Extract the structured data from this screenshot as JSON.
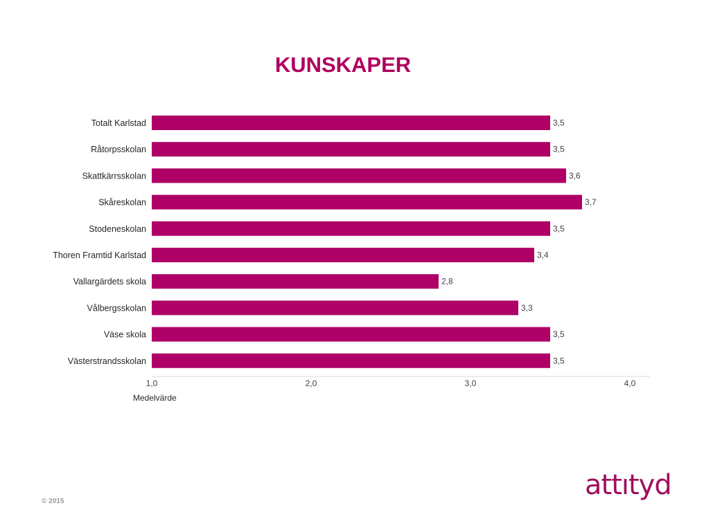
{
  "slide": {
    "title": "KUNSKAPER",
    "footer": "© 2015",
    "brand": "attıtyd"
  },
  "colors": {
    "bar": "#ae0066",
    "title": "#b0005f",
    "brand": "#a00e5e"
  },
  "chart_data": {
    "type": "bar",
    "orientation": "horizontal",
    "title": "KUNSKAPER",
    "xlabel": "Medelvärde",
    "ylabel": "",
    "xlim": [
      1.0,
      4.0
    ],
    "x_ticks": [
      "1,0",
      "2,0",
      "3,0",
      "4,0"
    ],
    "x_tick_values": [
      1.0,
      2.0,
      3.0,
      4.0
    ],
    "grid": false,
    "categories": [
      "Totalt Karlstad",
      "Råtorpsskolan",
      "Skattkärrsskolan",
      "Skåreskolan",
      "Stodeneskolan",
      "Thoren Framtid Karlstad",
      "Vallargärdets skola",
      "Vålbergsskolan",
      "Väse skola",
      "Västerstrandsskolan"
    ],
    "values": [
      3.5,
      3.5,
      3.6,
      3.7,
      3.5,
      3.4,
      2.8,
      3.3,
      3.5,
      3.5
    ],
    "value_labels": [
      "3,5",
      "3,5",
      "3,6",
      "3,7",
      "3,5",
      "3,4",
      "2,8",
      "3,3",
      "3,5",
      "3,5"
    ]
  }
}
